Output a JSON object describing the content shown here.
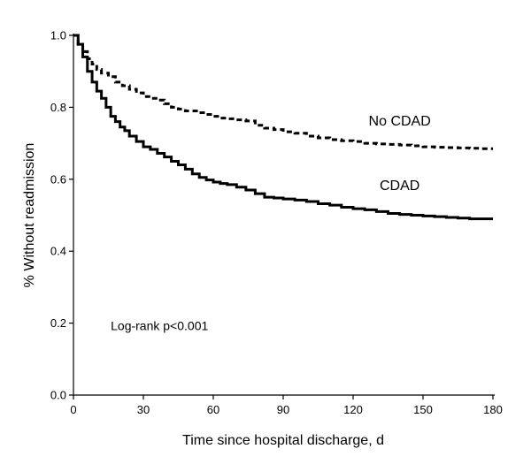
{
  "chart_data": {
    "type": "line",
    "title": "",
    "xlabel": "Time since hospital discharge, d",
    "ylabel": "% Without readmission",
    "xlim": [
      0,
      180
    ],
    "ylim": [
      0,
      1.0
    ],
    "x_ticks": [
      0,
      30,
      60,
      90,
      120,
      150,
      180
    ],
    "y_ticks": [
      0.0,
      0.2,
      0.4,
      0.6,
      0.8,
      1.0
    ],
    "x_tick_labels": [
      "0",
      "30",
      "60",
      "90",
      "120",
      "150",
      "180"
    ],
    "y_tick_labels": [
      "0.0",
      "0.2",
      "0.4",
      "0.6",
      "0.8",
      "1.0"
    ],
    "grid": false,
    "annotation": "Log-rank p<0.001",
    "series": [
      {
        "name": "No CDAD",
        "style": "dashed",
        "color": "#000000",
        "step": true,
        "points": [
          [
            0,
            1.0
          ],
          [
            2,
            0.975
          ],
          [
            4,
            0.955
          ],
          [
            6,
            0.935
          ],
          [
            8,
            0.92
          ],
          [
            10,
            0.905
          ],
          [
            12,
            0.895
          ],
          [
            15,
            0.885
          ],
          [
            18,
            0.87
          ],
          [
            21,
            0.86
          ],
          [
            24,
            0.85
          ],
          [
            27,
            0.84
          ],
          [
            30,
            0.83
          ],
          [
            33,
            0.825
          ],
          [
            36,
            0.82
          ],
          [
            39,
            0.81
          ],
          [
            42,
            0.8
          ],
          [
            45,
            0.795
          ],
          [
            48,
            0.79
          ],
          [
            51,
            0.79
          ],
          [
            54,
            0.785
          ],
          [
            57,
            0.78
          ],
          [
            60,
            0.775
          ],
          [
            63,
            0.77
          ],
          [
            66,
            0.768
          ],
          [
            70,
            0.765
          ],
          [
            74,
            0.762
          ],
          [
            78,
            0.75
          ],
          [
            82,
            0.742
          ],
          [
            86,
            0.738
          ],
          [
            90,
            0.732
          ],
          [
            95,
            0.728
          ],
          [
            100,
            0.72
          ],
          [
            105,
            0.715
          ],
          [
            110,
            0.71
          ],
          [
            115,
            0.707
          ],
          [
            120,
            0.705
          ],
          [
            125,
            0.7
          ],
          [
            130,
            0.698
          ],
          [
            135,
            0.697
          ],
          [
            140,
            0.695
          ],
          [
            145,
            0.693
          ],
          [
            150,
            0.69
          ],
          [
            155,
            0.689
          ],
          [
            160,
            0.688
          ],
          [
            165,
            0.687
          ],
          [
            170,
            0.686
          ],
          [
            175,
            0.685
          ],
          [
            180,
            0.685
          ]
        ]
      },
      {
        "name": "CDAD",
        "style": "solid",
        "color": "#000000",
        "step": true,
        "points": [
          [
            0,
            1.0
          ],
          [
            2,
            0.975
          ],
          [
            4,
            0.94
          ],
          [
            6,
            0.9
          ],
          [
            8,
            0.87
          ],
          [
            10,
            0.845
          ],
          [
            12,
            0.825
          ],
          [
            14,
            0.8
          ],
          [
            16,
            0.775
          ],
          [
            18,
            0.76
          ],
          [
            20,
            0.745
          ],
          [
            22,
            0.735
          ],
          [
            24,
            0.72
          ],
          [
            27,
            0.705
          ],
          [
            30,
            0.69
          ],
          [
            33,
            0.683
          ],
          [
            36,
            0.672
          ],
          [
            39,
            0.662
          ],
          [
            42,
            0.65
          ],
          [
            45,
            0.64
          ],
          [
            48,
            0.628
          ],
          [
            51,
            0.615
          ],
          [
            54,
            0.605
          ],
          [
            57,
            0.598
          ],
          [
            60,
            0.592
          ],
          [
            63,
            0.588
          ],
          [
            66,
            0.585
          ],
          [
            70,
            0.578
          ],
          [
            74,
            0.57
          ],
          [
            78,
            0.56
          ],
          [
            82,
            0.55
          ],
          [
            86,
            0.548
          ],
          [
            90,
            0.545
          ],
          [
            95,
            0.542
          ],
          [
            100,
            0.538
          ],
          [
            105,
            0.532
          ],
          [
            110,
            0.528
          ],
          [
            115,
            0.522
          ],
          [
            120,
            0.518
          ],
          [
            125,
            0.515
          ],
          [
            130,
            0.51
          ],
          [
            135,
            0.505
          ],
          [
            140,
            0.502
          ],
          [
            145,
            0.5
          ],
          [
            150,
            0.498
          ],
          [
            155,
            0.496
          ],
          [
            160,
            0.494
          ],
          [
            165,
            0.492
          ],
          [
            170,
            0.49
          ],
          [
            175,
            0.49
          ],
          [
            180,
            0.49
          ]
        ]
      }
    ],
    "series_label_positions": [
      {
        "series": "No CDAD",
        "x": 140,
        "y": 0.75
      },
      {
        "series": "CDAD",
        "x": 140,
        "y": 0.57
      }
    ],
    "annotation_position": {
      "x": 16,
      "y": 0.18
    }
  }
}
